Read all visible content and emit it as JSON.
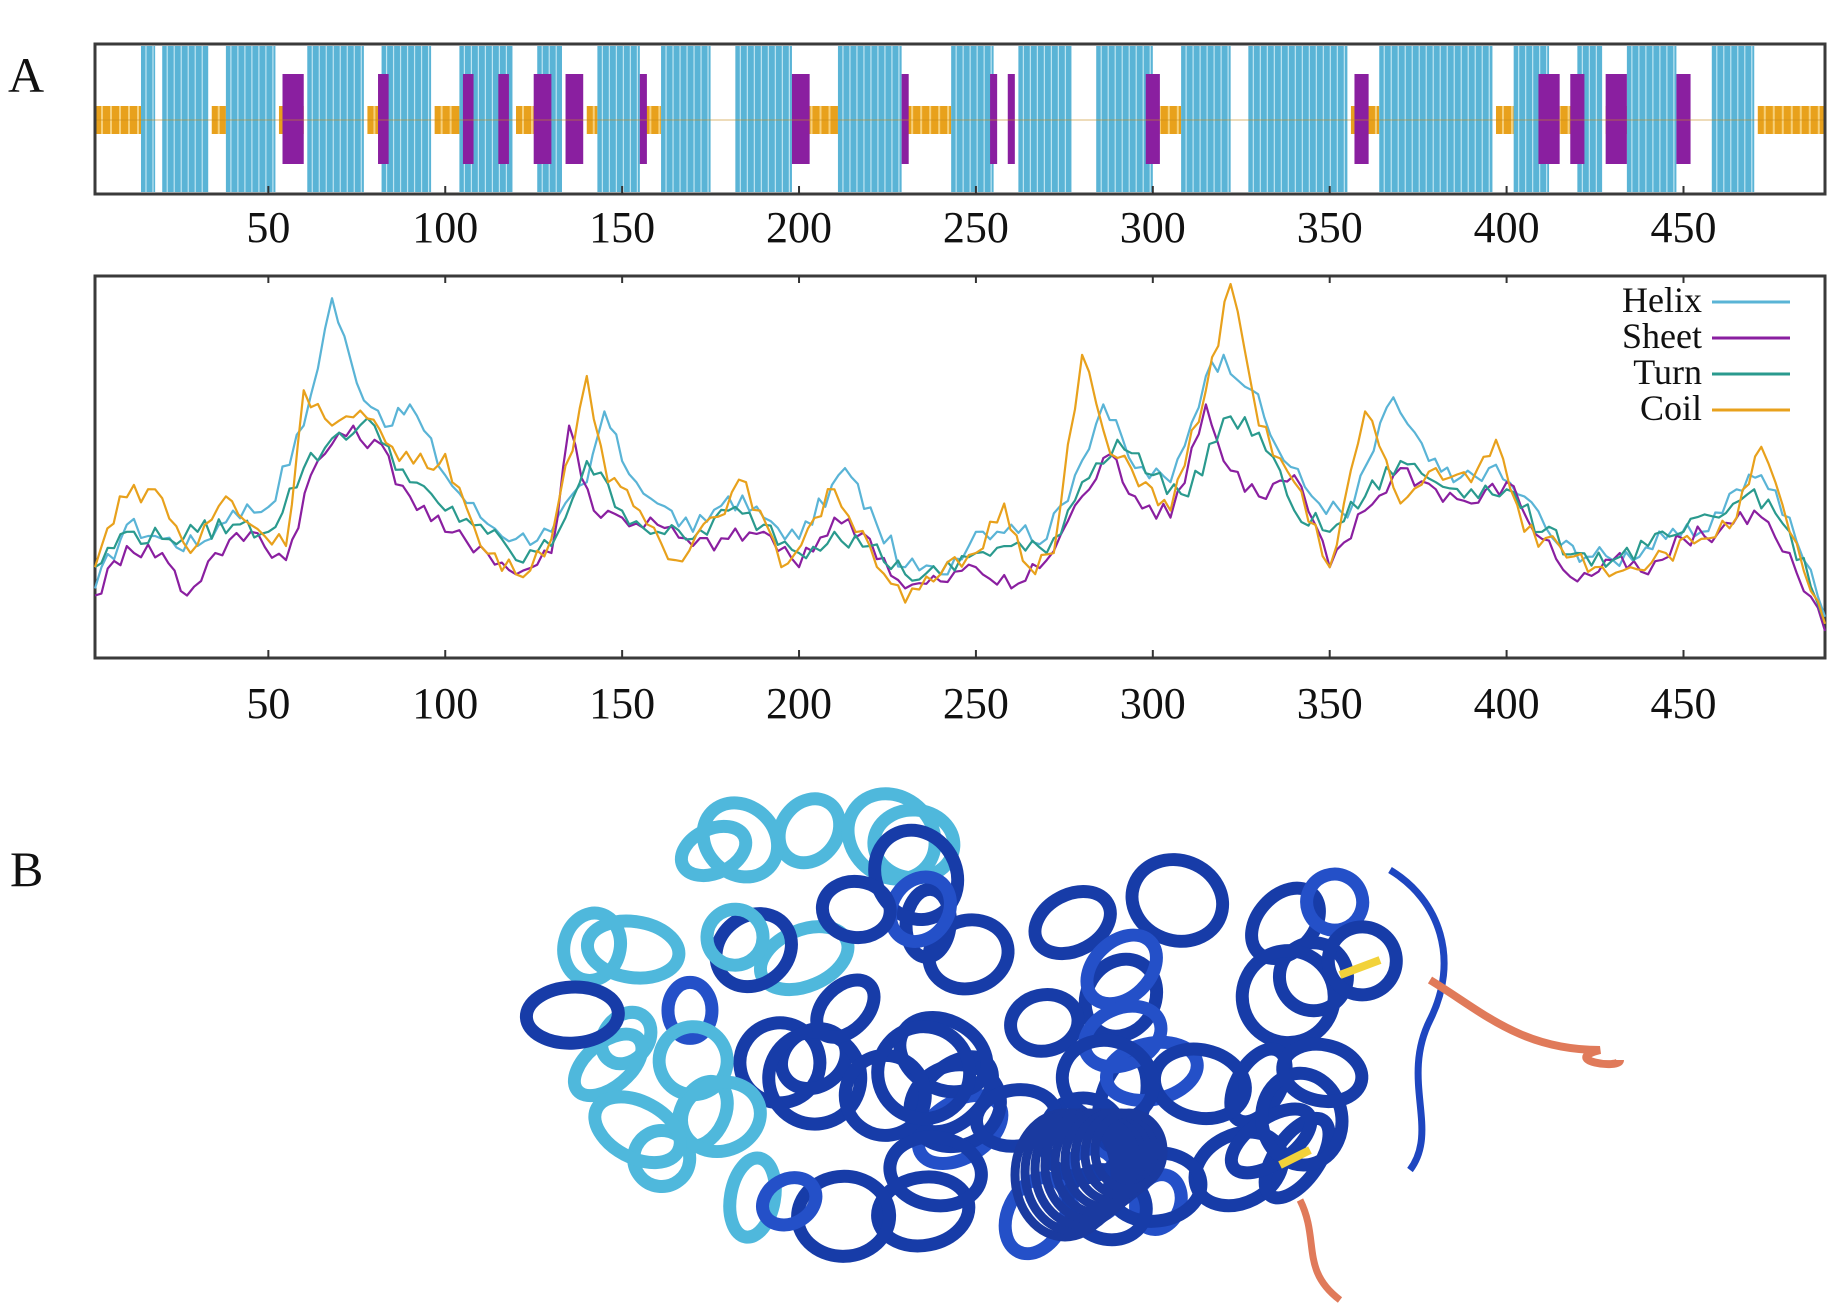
{
  "panels": {
    "a_label": "A",
    "b_label": "B"
  },
  "colors": {
    "helix": "#5ab4d6",
    "sheet": "#8a1fa0",
    "turn": "#2a9a8e",
    "coil": "#e8a11c"
  },
  "chart_data": [
    {
      "type": "track",
      "x_range": [
        1,
        490
      ],
      "xticks": [
        "50",
        "100",
        "150",
        "200",
        "250",
        "300",
        "350",
        "400",
        "450"
      ],
      "helix_regions": [
        [
          14,
          18
        ],
        [
          20,
          33
        ],
        [
          38,
          52
        ],
        [
          61,
          77
        ],
        [
          82,
          96
        ],
        [
          104,
          119
        ],
        [
          126,
          133
        ],
        [
          143,
          155
        ],
        [
          161,
          175
        ],
        [
          182,
          198
        ],
        [
          211,
          229
        ],
        [
          243,
          255
        ],
        [
          262,
          277
        ],
        [
          284,
          300
        ],
        [
          308,
          322
        ],
        [
          327,
          355
        ],
        [
          364,
          396
        ],
        [
          402,
          412
        ],
        [
          420,
          427
        ],
        [
          434,
          448
        ],
        [
          458,
          470
        ]
      ],
      "sheet_regions": [
        [
          54,
          60
        ],
        [
          81,
          84
        ],
        [
          105,
          108
        ],
        [
          115,
          118
        ],
        [
          125,
          130
        ],
        [
          134,
          139
        ],
        [
          155,
          157
        ],
        [
          198,
          203
        ],
        [
          229,
          231
        ],
        [
          254,
          256
        ],
        [
          259,
          261
        ],
        [
          298,
          302
        ],
        [
          357,
          361
        ],
        [
          409,
          415
        ],
        [
          418,
          422
        ],
        [
          428,
          434
        ],
        [
          448,
          452
        ]
      ],
      "coil_regions": [
        [
          1,
          14
        ],
        [
          34,
          38
        ],
        [
          53,
          60
        ],
        [
          78,
          82
        ],
        [
          97,
          104
        ],
        [
          120,
          125
        ],
        [
          140,
          143
        ],
        [
          156,
          161
        ],
        [
          199,
          211
        ],
        [
          230,
          243
        ],
        [
          300,
          308
        ],
        [
          356,
          364
        ],
        [
          397,
          402
        ],
        [
          413,
          420
        ],
        [
          428,
          434
        ],
        [
          471,
          490
        ]
      ]
    },
    {
      "type": "line",
      "x_range": [
        1,
        490
      ],
      "xticks": [
        "50",
        "100",
        "150",
        "200",
        "250",
        "300",
        "350",
        "400",
        "450"
      ],
      "legend": [
        "Helix",
        "Sheet",
        "Turn",
        "Coil"
      ],
      "legend_position": "top-right",
      "series": [
        {
          "name": "Helix",
          "values": [
            [
              1,
              0.14
            ],
            [
              10,
              0.32
            ],
            [
              20,
              0.28
            ],
            [
              30,
              0.26
            ],
            [
              40,
              0.36
            ],
            [
              50,
              0.37
            ],
            [
              60,
              0.6
            ],
            [
              68,
              0.96
            ],
            [
              75,
              0.72
            ],
            [
              85,
              0.6
            ],
            [
              90,
              0.66
            ],
            [
              100,
              0.46
            ],
            [
              110,
              0.34
            ],
            [
              120,
              0.28
            ],
            [
              130,
              0.3
            ],
            [
              140,
              0.44
            ],
            [
              145,
              0.64
            ],
            [
              150,
              0.5
            ],
            [
              160,
              0.38
            ],
            [
              170,
              0.3
            ],
            [
              180,
              0.4
            ],
            [
              190,
              0.34
            ],
            [
              200,
              0.28
            ],
            [
              213,
              0.48
            ],
            [
              222,
              0.32
            ],
            [
              230,
              0.2
            ],
            [
              240,
              0.18
            ],
            [
              250,
              0.3
            ],
            [
              260,
              0.32
            ],
            [
              270,
              0.28
            ],
            [
              278,
              0.46
            ],
            [
              286,
              0.66
            ],
            [
              295,
              0.48
            ],
            [
              305,
              0.44
            ],
            [
              315,
              0.74
            ],
            [
              320,
              0.8
            ],
            [
              328,
              0.7
            ],
            [
              335,
              0.54
            ],
            [
              345,
              0.4
            ],
            [
              355,
              0.34
            ],
            [
              368,
              0.68
            ],
            [
              378,
              0.5
            ],
            [
              385,
              0.44
            ],
            [
              395,
              0.48
            ],
            [
              405,
              0.4
            ],
            [
              415,
              0.26
            ],
            [
              430,
              0.22
            ],
            [
              445,
              0.28
            ],
            [
              455,
              0.3
            ],
            [
              465,
              0.42
            ],
            [
              472,
              0.46
            ],
            [
              480,
              0.34
            ],
            [
              490,
              0.06
            ]
          ]
        },
        {
          "name": "Sheet",
          "values": [
            [
              1,
              0.12
            ],
            [
              10,
              0.26
            ],
            [
              20,
              0.24
            ],
            [
              27,
              0.12
            ],
            [
              35,
              0.24
            ],
            [
              45,
              0.3
            ],
            [
              55,
              0.22
            ],
            [
              62,
              0.46
            ],
            [
              70,
              0.58
            ],
            [
              80,
              0.56
            ],
            [
              90,
              0.4
            ],
            [
              100,
              0.3
            ],
            [
              110,
              0.26
            ],
            [
              120,
              0.18
            ],
            [
              130,
              0.24
            ],
            [
              135,
              0.6
            ],
            [
              142,
              0.36
            ],
            [
              150,
              0.34
            ],
            [
              160,
              0.32
            ],
            [
              170,
              0.26
            ],
            [
              180,
              0.28
            ],
            [
              190,
              0.3
            ],
            [
              200,
              0.2
            ],
            [
              210,
              0.34
            ],
            [
              220,
              0.28
            ],
            [
              230,
              0.14
            ],
            [
              240,
              0.16
            ],
            [
              250,
              0.2
            ],
            [
              260,
              0.14
            ],
            [
              270,
              0.22
            ],
            [
              280,
              0.4
            ],
            [
              288,
              0.52
            ],
            [
              295,
              0.4
            ],
            [
              305,
              0.34
            ],
            [
              315,
              0.66
            ],
            [
              320,
              0.5
            ],
            [
              330,
              0.4
            ],
            [
              340,
              0.46
            ],
            [
              350,
              0.2
            ],
            [
              360,
              0.36
            ],
            [
              370,
              0.48
            ],
            [
              380,
              0.42
            ],
            [
              390,
              0.38
            ],
            [
              400,
              0.44
            ],
            [
              410,
              0.28
            ],
            [
              420,
              0.16
            ],
            [
              430,
              0.22
            ],
            [
              440,
              0.18
            ],
            [
              450,
              0.28
            ],
            [
              460,
              0.3
            ],
            [
              470,
              0.36
            ],
            [
              480,
              0.24
            ],
            [
              490,
              0.02
            ]
          ]
        },
        {
          "name": "Turn",
          "values": [
            [
              1,
              0.2
            ],
            [
              10,
              0.3
            ],
            [
              20,
              0.28
            ],
            [
              30,
              0.3
            ],
            [
              40,
              0.32
            ],
            [
              50,
              0.3
            ],
            [
              60,
              0.48
            ],
            [
              70,
              0.58
            ],
            [
              80,
              0.6
            ],
            [
              90,
              0.44
            ],
            [
              100,
              0.36
            ],
            [
              110,
              0.32
            ],
            [
              120,
              0.22
            ],
            [
              130,
              0.26
            ],
            [
              140,
              0.5
            ],
            [
              150,
              0.36
            ],
            [
              160,
              0.3
            ],
            [
              170,
              0.28
            ],
            [
              180,
              0.36
            ],
            [
              190,
              0.32
            ],
            [
              200,
              0.24
            ],
            [
              210,
              0.3
            ],
            [
              220,
              0.26
            ],
            [
              230,
              0.18
            ],
            [
              240,
              0.18
            ],
            [
              250,
              0.24
            ],
            [
              260,
              0.26
            ],
            [
              270,
              0.24
            ],
            [
              280,
              0.44
            ],
            [
              290,
              0.56
            ],
            [
              300,
              0.46
            ],
            [
              310,
              0.4
            ],
            [
              320,
              0.62
            ],
            [
              330,
              0.58
            ],
            [
              340,
              0.36
            ],
            [
              350,
              0.3
            ],
            [
              360,
              0.4
            ],
            [
              370,
              0.5
            ],
            [
              380,
              0.44
            ],
            [
              390,
              0.42
            ],
            [
              400,
              0.42
            ],
            [
              410,
              0.3
            ],
            [
              420,
              0.24
            ],
            [
              430,
              0.22
            ],
            [
              440,
              0.26
            ],
            [
              450,
              0.3
            ],
            [
              460,
              0.34
            ],
            [
              470,
              0.42
            ],
            [
              480,
              0.3
            ],
            [
              490,
              0.04
            ]
          ]
        },
        {
          "name": "Coil",
          "values": [
            [
              1,
              0.2
            ],
            [
              8,
              0.4
            ],
            [
              18,
              0.42
            ],
            [
              28,
              0.24
            ],
            [
              38,
              0.4
            ],
            [
              45,
              0.32
            ],
            [
              55,
              0.26
            ],
            [
              60,
              0.7
            ],
            [
              68,
              0.6
            ],
            [
              78,
              0.62
            ],
            [
              85,
              0.54
            ],
            [
              95,
              0.48
            ],
            [
              100,
              0.52
            ],
            [
              110,
              0.26
            ],
            [
              120,
              0.18
            ],
            [
              130,
              0.28
            ],
            [
              140,
              0.74
            ],
            [
              146,
              0.44
            ],
            [
              155,
              0.36
            ],
            [
              165,
              0.22
            ],
            [
              175,
              0.34
            ],
            [
              185,
              0.44
            ],
            [
              195,
              0.2
            ],
            [
              210,
              0.42
            ],
            [
              220,
              0.26
            ],
            [
              230,
              0.1
            ],
            [
              240,
              0.18
            ],
            [
              250,
              0.24
            ],
            [
              258,
              0.38
            ],
            [
              265,
              0.2
            ],
            [
              272,
              0.24
            ],
            [
              280,
              0.8
            ],
            [
              288,
              0.52
            ],
            [
              298,
              0.44
            ],
            [
              305,
              0.36
            ],
            [
              315,
              0.7
            ],
            [
              322,
              1.0
            ],
            [
              330,
              0.6
            ],
            [
              340,
              0.44
            ],
            [
              350,
              0.2
            ],
            [
              360,
              0.64
            ],
            [
              370,
              0.38
            ],
            [
              380,
              0.48
            ],
            [
              390,
              0.44
            ],
            [
              397,
              0.56
            ],
            [
              405,
              0.3
            ],
            [
              415,
              0.26
            ],
            [
              425,
              0.2
            ],
            [
              435,
              0.2
            ],
            [
              445,
              0.24
            ],
            [
              455,
              0.28
            ],
            [
              465,
              0.34
            ],
            [
              472,
              0.54
            ],
            [
              480,
              0.3
            ],
            [
              490,
              0.04
            ]
          ]
        }
      ]
    }
  ]
}
